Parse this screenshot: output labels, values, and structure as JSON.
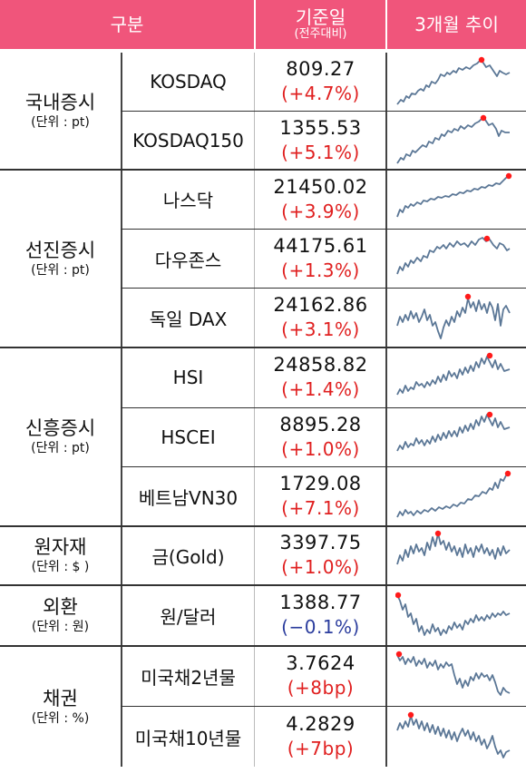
{
  "header": {
    "category": "구분",
    "base_date": "기준일",
    "base_sub": "(전주대비)",
    "trend": "3개월 추이"
  },
  "colors": {
    "header_bg": "#f0557b",
    "up": "#e02020",
    "down": "#2b3d9e",
    "line": "#5b7796",
    "peak": "#ff1a1a"
  },
  "groups": [
    {
      "name": "국내증시",
      "unit": "(단위 : pt)"
    },
    {
      "name": "선진증시",
      "unit": "(단위 : pt)"
    },
    {
      "name": "신흥증시",
      "unit": "(단위 : pt)"
    },
    {
      "name": "원자재",
      "unit": "(단위 : $ )"
    },
    {
      "name": "외환",
      "unit": "(단위 : 원)"
    },
    {
      "name": "채권",
      "unit": "(단위 : %)"
    }
  ],
  "rows": [
    {
      "name": "KOSDAQ",
      "value": "809.27",
      "change": "(+4.7%)",
      "dir": "up"
    },
    {
      "name": "KOSDAQ150",
      "value": "1355.53",
      "change": "(+5.1%)",
      "dir": "up"
    },
    {
      "name": "나스닥",
      "value": "21450.02",
      "change": "(+3.9%)",
      "dir": "up"
    },
    {
      "name": "다우존스",
      "value": "44175.61",
      "change": "(+1.3%)",
      "dir": "up"
    },
    {
      "name": "독일 DAX",
      "value": "24162.86",
      "change": "(+3.1%)",
      "dir": "up"
    },
    {
      "name": "HSI",
      "value": "24858.82",
      "change": "(+1.4%)",
      "dir": "up"
    },
    {
      "name": "HSCEI",
      "value": "8895.28",
      "change": "(+1.0%)",
      "dir": "up"
    },
    {
      "name": "베트남VN30",
      "value": "1729.08",
      "change": "(+7.1%)",
      "dir": "up"
    },
    {
      "name": "금(Gold)",
      "value": "3397.75",
      "change": "(+1.0%)",
      "dir": "up"
    },
    {
      "name": "원/달러",
      "value": "1388.77",
      "change": "(−0.1%)",
      "dir": "down"
    },
    {
      "name": "미국채2년물",
      "value": "3.7624",
      "change": "(+8bp)",
      "dir": "up"
    },
    {
      "name": "미국채10년물",
      "value": "4.2829",
      "change": "(+7bp)",
      "dir": "up"
    }
  ]
}
